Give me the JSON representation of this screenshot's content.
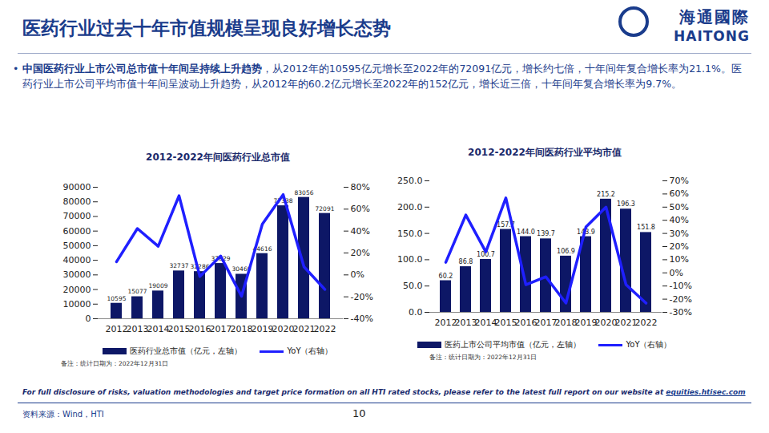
{
  "page": {
    "title": "医药行业过去十年市值规模呈现良好增长态势",
    "logo_cn": "海通國際",
    "logo_en": "HAITONG",
    "bullet_bold": "中国医药行业上市公司总市值十年间呈持续上升趋势",
    "bullet_text": "，从2012年的10595亿元增长至2022年的72091亿元，增长约七倍，十年间年复合增长率为21.1%。医药行业上市公司平均市值十年间呈波动上升趋势，从2012年的60.2亿元增长至2022年的152亿元，增长近三倍，十年间年复合增长率为9.7%。",
    "disclaimer": "For full disclosure of risks, valuation methodologies and target price formation on all HTI rated stocks, please refer to the latest full report on our website at ",
    "disclaimer_link": "equities.htisec.com",
    "source": "资料来源：Wind，HTI",
    "page_number": "10"
  },
  "chart_data": [
    {
      "type": "bar",
      "title": "2012-2022年间医药行业总市值",
      "note": "备注：统计日期为：2022年12月31日",
      "categories": [
        "2012",
        "2013",
        "2014",
        "2015",
        "2016",
        "2017",
        "2018",
        "2019",
        "2020",
        "2021",
        "2022"
      ],
      "series": [
        {
          "name": "医药行业总市值（亿元，左轴）",
          "type": "bar",
          "color": "#0d1766",
          "data_labels": true,
          "values": [
            10595,
            15077,
            19009,
            32737,
            32286,
            37829,
            30469,
            44616,
            77338,
            83056,
            72091
          ]
        },
        {
          "name": "YoY（右轴）",
          "type": "line",
          "axis": "y2",
          "color": "#1f1fff",
          "values": [
            12,
            42.3,
            26.1,
            72.2,
            -1.4,
            17.2,
            -19.5,
            46.4,
            73.3,
            7.4,
            -13.2
          ]
        }
      ],
      "ylim": [
        0,
        90000
      ],
      "yticks": [
        0,
        10000,
        20000,
        30000,
        40000,
        50000,
        60000,
        70000,
        80000,
        90000
      ],
      "y2lim": [
        -40,
        80
      ],
      "y2ticks": [
        {
          "value": -40,
          "label": "-40%"
        },
        {
          "value": -20,
          "label": "-20%"
        },
        {
          "value": 0,
          "label": "0%"
        },
        {
          "value": 20,
          "label": "20%"
        },
        {
          "value": 40,
          "label": "40%"
        },
        {
          "value": 60,
          "label": "60%"
        },
        {
          "value": 80,
          "label": "80%"
        }
      ],
      "grid": false,
      "legend": "bottom"
    },
    {
      "type": "bar",
      "title": "2012-2022年间医药行业平均市值",
      "note": "备注：统计日期为：2022年12月31日",
      "categories": [
        "2012",
        "2013",
        "2014",
        "2015",
        "2016",
        "2017",
        "2018",
        "2019",
        "2020",
        "2021",
        "2022"
      ],
      "series": [
        {
          "name": "医药上市公司平均市值（亿元，左轴）",
          "type": "bar",
          "color": "#0d1766",
          "data_labels": true,
          "values": [
            60.2,
            86.8,
            100.7,
            157.7,
            144.0,
            139.7,
            106.9,
            143.9,
            215.2,
            196.3,
            151.8
          ],
          "value_labels": [
            "60.2",
            "86.8",
            "100.7",
            "157.7",
            "144.0",
            "139.7",
            "106.9",
            "143.9",
            "215.2",
            "196.3",
            "151.8"
          ]
        },
        {
          "name": "YoY（右轴）",
          "type": "line",
          "axis": "y2",
          "color": "#1f1fff",
          "values": [
            8,
            44,
            16,
            57,
            -9,
            -3,
            -23,
            35,
            50,
            -9,
            -23
          ]
        }
      ],
      "ylim": [
        0,
        250
      ],
      "yticks": [
        {
          "value": 0,
          "label": "0.0"
        },
        {
          "value": 50,
          "label": "50.0"
        },
        {
          "value": 100,
          "label": "100.0"
        },
        {
          "value": 150,
          "label": "150.0"
        },
        {
          "value": 200,
          "label": "200.0"
        },
        {
          "value": 250,
          "label": "250.0"
        }
      ],
      "y2lim": [
        -30,
        70
      ],
      "y2ticks": [
        {
          "value": -30,
          "label": "-30%"
        },
        {
          "value": -20,
          "label": "-20%"
        },
        {
          "value": -10,
          "label": "-10%"
        },
        {
          "value": 0,
          "label": "0%"
        },
        {
          "value": 10,
          "label": "10%"
        },
        {
          "value": 20,
          "label": "20%"
        },
        {
          "value": 30,
          "label": "30%"
        },
        {
          "value": 40,
          "label": "40%"
        },
        {
          "value": 50,
          "label": "50%"
        },
        {
          "value": 60,
          "label": "60%"
        },
        {
          "value": 70,
          "label": "70%"
        }
      ],
      "grid": false,
      "legend": "bottom"
    }
  ]
}
